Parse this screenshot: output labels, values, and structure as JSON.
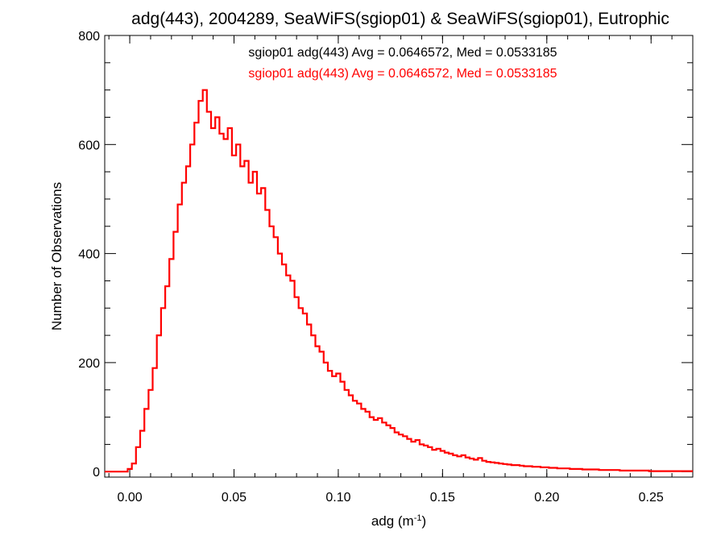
{
  "chart_data": {
    "type": "histogram-step",
    "title": "adg(443), 2004289, SeaWiFS(sgiop01) & SeaWiFS(sgiop01), Eutrophic",
    "xlabel": "adg (m",
    "xlabel_sup": "-1",
    "xlabel_close": ")",
    "ylabel": "Number of Observations",
    "xlim": [
      -0.012,
      0.27
    ],
    "ylim": [
      -10,
      800
    ],
    "xticks": [
      0.0,
      0.05,
      0.1,
      0.15,
      0.2,
      0.25
    ],
    "xtick_labels": [
      "0.00",
      "0.05",
      "0.10",
      "0.15",
      "0.20",
      "0.25"
    ],
    "yticks": [
      0,
      200,
      400,
      600,
      800
    ],
    "ytick_labels": [
      "0",
      "200",
      "400",
      "600",
      "800"
    ],
    "annotations": [
      {
        "text": "sgiop01 adg(443) Avg = 0.0646572, Med = 0.0533185",
        "color": "#000000"
      },
      {
        "text": "sgiop01 adg(443) Avg = 0.0646572, Med = 0.0533185",
        "color": "#ff0000"
      }
    ],
    "series": [
      {
        "color": "#ff0000",
        "bin_width": 0.001,
        "points": [
          [
            -0.012,
            0
          ],
          [
            -0.003,
            0
          ],
          [
            -0.001,
            5
          ],
          [
            0.001,
            15
          ],
          [
            0.003,
            45
          ],
          [
            0.005,
            75
          ],
          [
            0.007,
            115
          ],
          [
            0.009,
            150
          ],
          [
            0.011,
            190
          ],
          [
            0.013,
            250
          ],
          [
            0.015,
            300
          ],
          [
            0.017,
            340
          ],
          [
            0.019,
            390
          ],
          [
            0.021,
            440
          ],
          [
            0.023,
            490
          ],
          [
            0.025,
            530
          ],
          [
            0.027,
            560
          ],
          [
            0.029,
            600
          ],
          [
            0.031,
            640
          ],
          [
            0.033,
            680
          ],
          [
            0.035,
            700
          ],
          [
            0.037,
            660
          ],
          [
            0.039,
            630
          ],
          [
            0.041,
            650
          ],
          [
            0.043,
            620
          ],
          [
            0.045,
            610
          ],
          [
            0.047,
            630
          ],
          [
            0.049,
            580
          ],
          [
            0.051,
            600
          ],
          [
            0.053,
            560
          ],
          [
            0.055,
            570
          ],
          [
            0.057,
            530
          ],
          [
            0.059,
            550
          ],
          [
            0.061,
            510
          ],
          [
            0.063,
            520
          ],
          [
            0.065,
            480
          ],
          [
            0.067,
            450
          ],
          [
            0.069,
            430
          ],
          [
            0.071,
            400
          ],
          [
            0.073,
            380
          ],
          [
            0.075,
            360
          ],
          [
            0.077,
            350
          ],
          [
            0.079,
            320
          ],
          [
            0.081,
            300
          ],
          [
            0.083,
            290
          ],
          [
            0.085,
            270
          ],
          [
            0.087,
            250
          ],
          [
            0.089,
            230
          ],
          [
            0.091,
            220
          ],
          [
            0.093,
            200
          ],
          [
            0.095,
            185
          ],
          [
            0.097,
            175
          ],
          [
            0.099,
            180
          ],
          [
            0.101,
            165
          ],
          [
            0.103,
            150
          ],
          [
            0.105,
            140
          ],
          [
            0.107,
            130
          ],
          [
            0.109,
            125
          ],
          [
            0.111,
            115
          ],
          [
            0.113,
            110
          ],
          [
            0.115,
            100
          ],
          [
            0.117,
            95
          ],
          [
            0.119,
            98
          ],
          [
            0.121,
            90
          ],
          [
            0.123,
            85
          ],
          [
            0.125,
            80
          ],
          [
            0.127,
            72
          ],
          [
            0.129,
            68
          ],
          [
            0.131,
            65
          ],
          [
            0.133,
            60
          ],
          [
            0.135,
            55
          ],
          [
            0.137,
            58
          ],
          [
            0.139,
            50
          ],
          [
            0.141,
            48
          ],
          [
            0.143,
            45
          ],
          [
            0.145,
            40
          ],
          [
            0.147,
            42
          ],
          [
            0.149,
            38
          ],
          [
            0.151,
            35
          ],
          [
            0.153,
            33
          ],
          [
            0.155,
            30
          ],
          [
            0.157,
            28
          ],
          [
            0.159,
            30
          ],
          [
            0.161,
            26
          ],
          [
            0.163,
            24
          ],
          [
            0.165,
            22
          ],
          [
            0.167,
            25
          ],
          [
            0.169,
            20
          ],
          [
            0.171,
            18
          ],
          [
            0.173,
            17
          ],
          [
            0.175,
            16
          ],
          [
            0.177,
            15
          ],
          [
            0.179,
            14
          ],
          [
            0.181,
            13
          ],
          [
            0.183,
            12
          ],
          [
            0.185,
            12
          ],
          [
            0.187,
            11
          ],
          [
            0.189,
            10
          ],
          [
            0.191,
            10
          ],
          [
            0.193,
            9
          ],
          [
            0.195,
            9
          ],
          [
            0.197,
            8
          ],
          [
            0.199,
            8
          ],
          [
            0.201,
            7
          ],
          [
            0.203,
            7
          ],
          [
            0.205,
            6
          ],
          [
            0.207,
            6
          ],
          [
            0.209,
            6
          ],
          [
            0.211,
            5
          ],
          [
            0.213,
            5
          ],
          [
            0.215,
            5
          ],
          [
            0.217,
            4
          ],
          [
            0.219,
            4
          ],
          [
            0.221,
            4
          ],
          [
            0.223,
            4
          ],
          [
            0.225,
            3
          ],
          [
            0.227,
            3
          ],
          [
            0.229,
            3
          ],
          [
            0.231,
            3
          ],
          [
            0.233,
            3
          ],
          [
            0.235,
            2
          ],
          [
            0.237,
            2
          ],
          [
            0.239,
            2
          ],
          [
            0.241,
            2
          ],
          [
            0.243,
            2
          ],
          [
            0.245,
            2
          ],
          [
            0.247,
            2
          ],
          [
            0.249,
            1
          ],
          [
            0.251,
            1
          ],
          [
            0.253,
            1
          ],
          [
            0.255,
            1
          ],
          [
            0.257,
            1
          ],
          [
            0.259,
            1
          ],
          [
            0.261,
            1
          ],
          [
            0.263,
            1
          ],
          [
            0.265,
            1
          ],
          [
            0.267,
            1
          ],
          [
            0.27,
            1
          ]
        ]
      }
    ]
  }
}
